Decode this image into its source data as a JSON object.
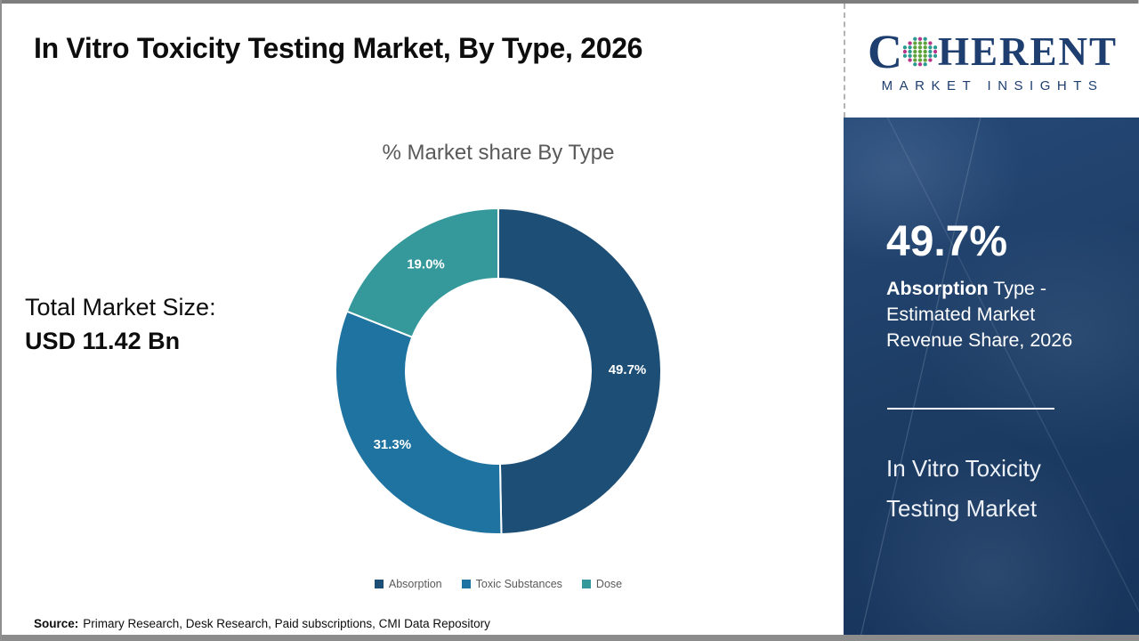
{
  "header": {
    "title": "In Vitro Toxicity Testing Market, By Type, 2026"
  },
  "logo": {
    "word_start": "C",
    "word_end": "HERENT",
    "tagline": "MARKET INSIGHTS",
    "brand_color": "#1d3e6e"
  },
  "left_panel": {
    "total_label": "Total Market Size:",
    "total_value": "USD 11.42 Bn"
  },
  "chart_data": {
    "type": "pie",
    "subtype": "donut",
    "title": "% Market share By Type",
    "categories": [
      "Absorption",
      "Toxic Substances",
      "Dose"
    ],
    "values": [
      49.7,
      31.3,
      19.0
    ],
    "labels": [
      "49.7%",
      "31.3%",
      "19.0%"
    ],
    "colors": [
      "#1D4E76",
      "#1F73A1",
      "#35999C"
    ],
    "start_angle_deg": 0,
    "direction": "clockwise",
    "inner_radius_ratio": 0.57,
    "separator_color": "#FFFFFF",
    "label_color": "#FFFFFF",
    "legend_position": "bottom",
    "legend_text_color": "#595959"
  },
  "sidebar": {
    "headline": "49.7%",
    "type_bold": "Absorption",
    "type_rest": " Type - Estimated Market Revenue Share, 2026",
    "market_line1": "In Vitro Toxicity",
    "market_line2": "Testing Market",
    "background": "#1d3d65"
  },
  "footer": {
    "source_label": "Source:",
    "source_text": "Primary Research, Desk Research, Paid subscriptions, CMI Data Repository"
  }
}
